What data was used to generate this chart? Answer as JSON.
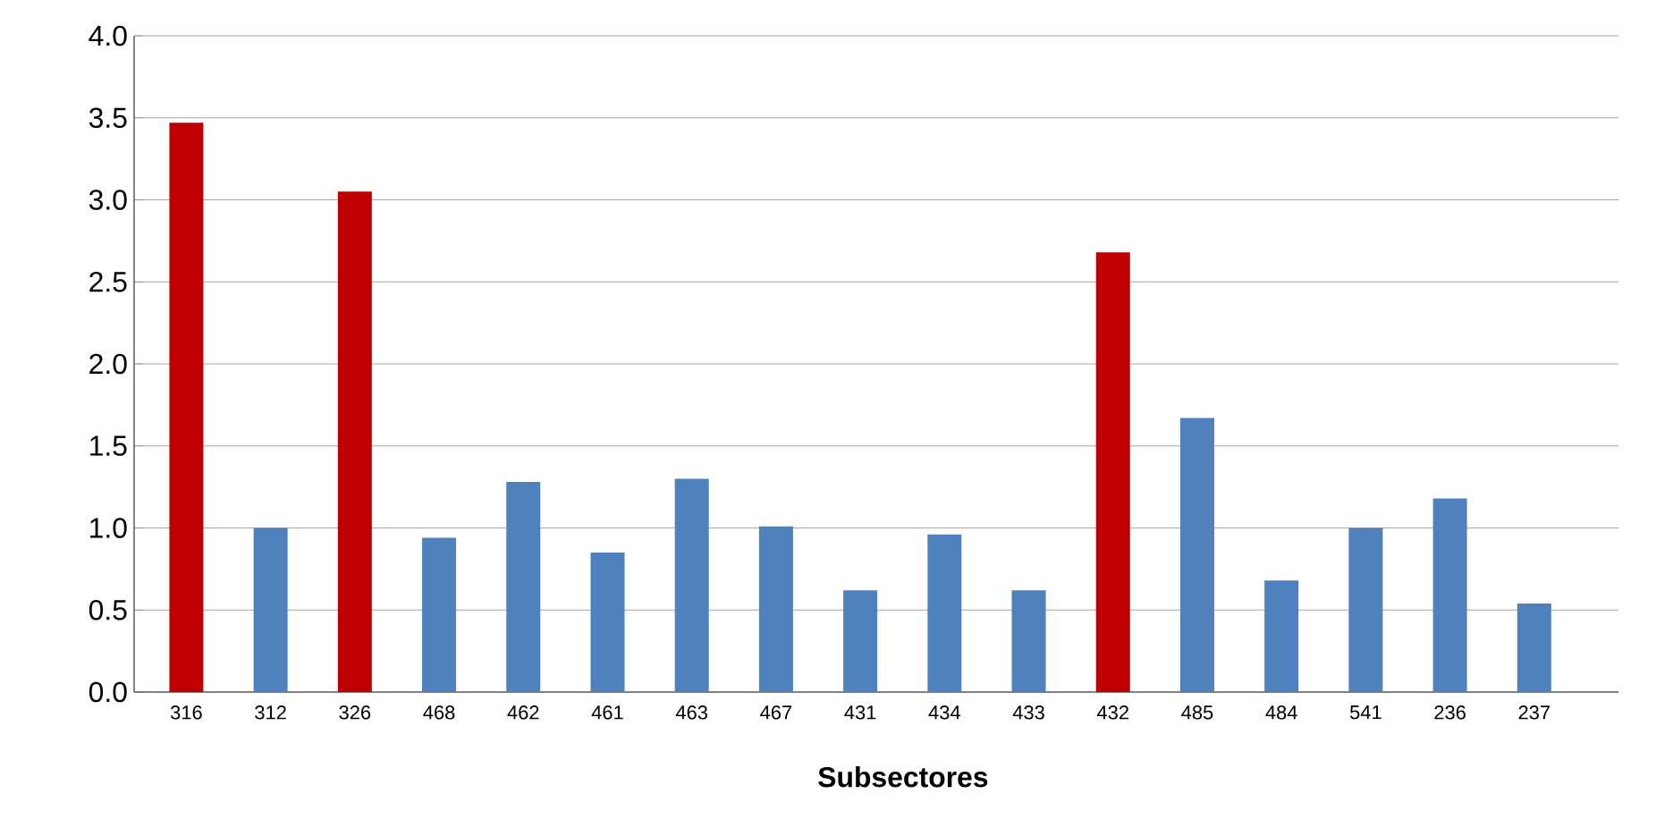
{
  "chart_data": {
    "type": "bar",
    "xlabel": "Subsectores",
    "categories": [
      "316",
      "312",
      "326",
      "468",
      "462",
      "461",
      "463",
      "467",
      "431",
      "434",
      "433",
      "432",
      "485",
      "484",
      "541",
      "236",
      "237"
    ],
    "values": [
      3.47,
      1.0,
      3.05,
      0.94,
      1.28,
      0.85,
      1.3,
      1.01,
      0.62,
      0.96,
      0.62,
      2.68,
      1.67,
      0.68,
      1.0,
      1.18,
      0.54
    ],
    "colors": [
      "#c00000",
      "#4f81bd",
      "#c00000",
      "#4f81bd",
      "#4f81bd",
      "#4f81bd",
      "#4f81bd",
      "#4f81bd",
      "#4f81bd",
      "#4f81bd",
      "#4f81bd",
      "#c00000",
      "#4f81bd",
      "#4f81bd",
      "#4f81bd",
      "#4f81bd",
      "#4f81bd"
    ],
    "ylim": [
      0,
      4
    ],
    "yticks": [
      {
        "value": 0,
        "label": "0.0"
      },
      0.5,
      {
        "value": 1,
        "label": "1.0"
      },
      1.5,
      {
        "value": 2,
        "label": "2.0"
      },
      2.5,
      {
        "value": 3,
        "label": "3.0"
      },
      3.5,
      {
        "value": 4,
        "label": "4.0"
      }
    ],
    "grid": "y"
  }
}
